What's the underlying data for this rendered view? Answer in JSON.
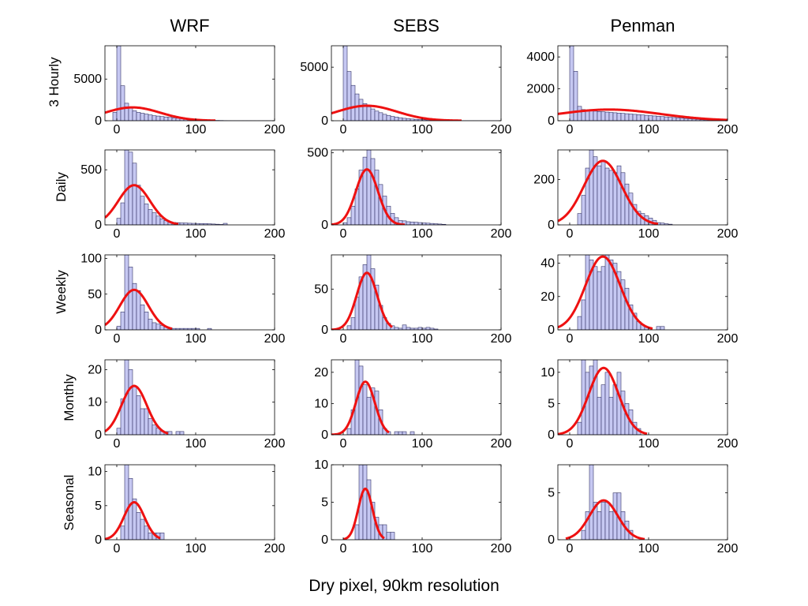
{
  "figure": {
    "columns": [
      "WRF",
      "SEBS",
      "Penman"
    ],
    "rows": [
      "3 Hourly",
      "Daily",
      "Weekly",
      "Monthly",
      "Seasonal"
    ],
    "xlabel": "Dry pixel, 90km resolution"
  },
  "chart_data": {
    "type": "bar",
    "title": "",
    "xlabel": "Dry pixel, 90km resolution",
    "grid": false,
    "xlim": [
      -15,
      200
    ],
    "xticks": [
      0,
      100,
      200
    ],
    "bin_width": 5,
    "colors": {
      "bar_fill": "#c6c8f2",
      "bar_edge": "#333366",
      "fit_line": "#ee1111",
      "axes": "#000000"
    },
    "panels": [
      {
        "column": "WRF",
        "row": "3 Hourly",
        "ylim": [
          0,
          9000
        ],
        "yticks": [
          0,
          5000
        ],
        "bins": [
          -5,
          0,
          5,
          10,
          15,
          20,
          25,
          30,
          35,
          40,
          45,
          50,
          55,
          60,
          65,
          70,
          75,
          80,
          85,
          90,
          95,
          100,
          105,
          110,
          115,
          120,
          125,
          130,
          135,
          140,
          145,
          150,
          155,
          160,
          165,
          170,
          175,
          180,
          185,
          190,
          195
        ],
        "counts": [
          1000,
          9000,
          4200,
          2100,
          1500,
          1200,
          1000,
          900,
          800,
          700,
          600,
          560,
          500,
          450,
          400,
          350,
          300,
          270,
          240,
          200,
          170,
          140,
          110,
          90,
          70,
          50,
          40,
          30,
          20,
          15,
          10,
          8,
          6,
          5,
          4,
          3,
          2,
          2,
          1,
          1,
          1
        ],
        "fit": {
          "mu": 20,
          "sigma": 35,
          "peak": 1600,
          "from": -15,
          "to": 125
        }
      },
      {
        "column": "SEBS",
        "row": "3 Hourly",
        "ylim": [
          0,
          7000
        ],
        "yticks": [
          0,
          5000
        ],
        "bins": [
          0,
          5,
          10,
          15,
          20,
          25,
          30,
          35,
          40,
          45,
          50,
          55,
          60,
          65,
          70,
          75,
          80,
          85,
          90,
          95,
          100,
          105,
          110,
          115,
          120,
          125,
          130,
          135,
          140,
          145,
          150,
          155,
          160,
          165,
          170,
          175,
          180,
          185,
          190,
          195
        ],
        "counts": [
          7000,
          4600,
          3300,
          2500,
          2000,
          1600,
          1300,
          1100,
          900,
          750,
          600,
          500,
          400,
          340,
          280,
          230,
          190,
          160,
          130,
          110,
          90,
          75,
          60,
          50,
          40,
          30,
          25,
          20,
          15,
          10,
          8,
          6,
          5,
          4,
          3,
          2,
          2,
          1,
          1,
          1
        ],
        "fit": {
          "mu": 30,
          "sigma": 38,
          "peak": 1400,
          "from": -15,
          "to": 150
        }
      },
      {
        "column": "Penman",
        "row": "3 Hourly",
        "ylim": [
          0,
          4700
        ],
        "yticks": [
          0,
          2000,
          4000
        ],
        "bins": [
          0,
          5,
          10,
          15,
          20,
          25,
          30,
          35,
          40,
          45,
          50,
          55,
          60,
          65,
          70,
          75,
          80,
          85,
          90,
          95,
          100,
          105,
          110,
          115,
          120,
          125,
          130,
          135,
          140,
          145,
          150,
          155,
          160,
          165,
          170,
          175,
          180,
          185,
          190,
          195
        ],
        "counts": [
          4700,
          3100,
          900,
          700,
          650,
          620,
          600,
          580,
          560,
          540,
          520,
          500,
          480,
          460,
          440,
          420,
          400,
          380,
          360,
          340,
          320,
          300,
          280,
          260,
          240,
          220,
          200,
          180,
          160,
          140,
          120,
          100,
          80,
          60,
          50,
          40,
          30,
          20,
          10,
          5
        ],
        "fit": {
          "mu": 50,
          "sigma": 65,
          "peak": 700,
          "from": -15,
          "to": 200
        }
      },
      {
        "column": "WRF",
        "row": "Daily",
        "ylim": [
          0,
          680
        ],
        "yticks": [
          0,
          500
        ],
        "bins": [
          0,
          5,
          10,
          15,
          20,
          25,
          30,
          35,
          40,
          45,
          50,
          55,
          60,
          65,
          70,
          75,
          80,
          85,
          90,
          95,
          100,
          105,
          110,
          115,
          120,
          125,
          130,
          135
        ],
        "counts": [
          60,
          200,
          680,
          660,
          560,
          360,
          260,
          190,
          140,
          110,
          80,
          55,
          40,
          30,
          22,
          20,
          18,
          17,
          15,
          14,
          13,
          12,
          12,
          10,
          8,
          6,
          4,
          14
        ],
        "fit": {
          "mu": 22,
          "sigma": 20,
          "peak": 360,
          "from": -15,
          "to": 78
        }
      },
      {
        "column": "SEBS",
        "row": "Daily",
        "ylim": [
          0,
          520
        ],
        "yticks": [
          0,
          500
        ],
        "bins": [
          0,
          5,
          10,
          15,
          20,
          25,
          30,
          35,
          40,
          45,
          50,
          55,
          60,
          65,
          70,
          75,
          80,
          85,
          90,
          95,
          100,
          105,
          110,
          115,
          120,
          125
        ],
        "counts": [
          15,
          50,
          130,
          250,
          380,
          470,
          520,
          460,
          380,
          280,
          200,
          130,
          80,
          50,
          30,
          28,
          22,
          20,
          18,
          16,
          14,
          12,
          10,
          8,
          6,
          4
        ],
        "fit": {
          "mu": 30,
          "sigma": 14,
          "peak": 385,
          "from": -15,
          "to": 78
        }
      },
      {
        "column": "Penman",
        "row": "Daily",
        "ylim": [
          0,
          330
        ],
        "yticks": [
          0,
          200
        ],
        "bins": [
          10,
          15,
          20,
          25,
          30,
          35,
          40,
          45,
          50,
          55,
          60,
          65,
          70,
          75,
          80,
          85,
          90,
          95,
          100,
          105,
          110,
          115,
          120,
          125
        ],
        "counts": [
          50,
          130,
          250,
          330,
          300,
          260,
          280,
          250,
          240,
          230,
          260,
          230,
          180,
          140,
          90,
          60,
          50,
          40,
          30,
          20,
          10,
          8,
          5,
          3
        ],
        "fit": {
          "mu": 42,
          "sigma": 24,
          "peak": 282,
          "from": -15,
          "to": 112
        }
      },
      {
        "column": "WRF",
        "row": "Weekly",
        "ylim": [
          0,
          105
        ],
        "yticks": [
          0,
          50,
          100
        ],
        "bins": [
          0,
          5,
          10,
          15,
          20,
          25,
          30,
          35,
          40,
          45,
          50,
          55,
          60,
          65,
          70,
          75,
          80,
          85,
          90,
          95,
          100,
          105,
          110,
          115
        ],
        "counts": [
          5,
          25,
          105,
          88,
          65,
          55,
          35,
          25,
          15,
          10,
          8,
          6,
          4,
          3,
          2,
          2,
          2,
          2,
          2,
          2,
          2,
          0,
          0,
          2
        ],
        "fit": {
          "mu": 22,
          "sigma": 18,
          "peak": 56,
          "from": -15,
          "to": 70
        }
      },
      {
        "column": "SEBS",
        "row": "Weekly",
        "ylim": [
          0,
          92
        ],
        "yticks": [
          0,
          50
        ],
        "bins": [
          5,
          10,
          15,
          20,
          25,
          30,
          35,
          40,
          45,
          50,
          55,
          60,
          65,
          70,
          75,
          80,
          85,
          90,
          95,
          100,
          105,
          110,
          115
        ],
        "counts": [
          5,
          15,
          40,
          65,
          80,
          92,
          75,
          55,
          30,
          15,
          8,
          5,
          3,
          2,
          6,
          3,
          2,
          2,
          3,
          2,
          3,
          2,
          1
        ],
        "fit": {
          "mu": 30,
          "sigma": 13,
          "peak": 70,
          "from": -15,
          "to": 62
        }
      },
      {
        "column": "Penman",
        "row": "Weekly",
        "ylim": [
          0,
          45
        ],
        "yticks": [
          0,
          20,
          40
        ],
        "bins": [
          10,
          15,
          20,
          25,
          30,
          35,
          40,
          45,
          50,
          55,
          60,
          65,
          70,
          75,
          80,
          85,
          90,
          95,
          100,
          105,
          110,
          115
        ],
        "counts": [
          8,
          18,
          45,
          42,
          38,
          35,
          38,
          45,
          42,
          40,
          35,
          30,
          25,
          15,
          10,
          5,
          3,
          2,
          0,
          0,
          2,
          2
        ],
        "fit": {
          "mu": 42,
          "sigma": 22,
          "peak": 44,
          "from": -15,
          "to": 105
        }
      },
      {
        "column": "WRF",
        "row": "Monthly",
        "ylim": [
          0,
          23
        ],
        "yticks": [
          0,
          10,
          20
        ],
        "bins": [
          0,
          5,
          10,
          15,
          20,
          25,
          30,
          35,
          40,
          45,
          50,
          55,
          60,
          65,
          70,
          75,
          80
        ],
        "counts": [
          2,
          11,
          23,
          20,
          15,
          12,
          8,
          8,
          5,
          3,
          2,
          1,
          1,
          1,
          0,
          1,
          1
        ],
        "fit": {
          "mu": 22,
          "sigma": 16,
          "peak": 15,
          "from": -15,
          "to": 65
        }
      },
      {
        "column": "SEBS",
        "row": "Monthly",
        "ylim": [
          0,
          24
        ],
        "yticks": [
          0,
          10,
          20
        ],
        "bins": [
          5,
          10,
          15,
          20,
          25,
          30,
          35,
          40,
          45,
          50,
          55,
          60,
          65,
          70,
          75,
          80,
          85
        ],
        "counts": [
          2,
          8,
          24,
          22,
          16,
          12,
          15,
          14,
          8,
          2,
          1,
          0,
          1,
          1,
          1,
          0,
          1
        ],
        "fit": {
          "mu": 28,
          "sigma": 12,
          "peak": 17,
          "from": -15,
          "to": 58
        }
      },
      {
        "column": "Penman",
        "row": "Monthly",
        "ylim": [
          0,
          12
        ],
        "yticks": [
          0,
          5,
          10
        ],
        "bins": [
          10,
          15,
          20,
          25,
          30,
          35,
          40,
          45,
          50,
          55,
          60,
          65,
          70,
          75,
          80,
          85,
          90,
          95
        ],
        "counts": [
          2,
          12,
          10,
          11,
          12,
          6,
          8,
          10,
          6,
          8,
          10,
          7,
          5,
          4,
          2,
          1,
          0,
          0
        ],
        "fit": {
          "mu": 43,
          "sigma": 19,
          "peak": 10.7,
          "from": -15,
          "to": 98
        }
      },
      {
        "column": "WRF",
        "row": "Seasonal",
        "ylim": [
          0,
          11
        ],
        "yticks": [
          0,
          5,
          10
        ],
        "bins": [
          5,
          10,
          15,
          20,
          25,
          30,
          35,
          40,
          45,
          50,
          55
        ],
        "counts": [
          2,
          11,
          9,
          6,
          4,
          3,
          2,
          1,
          1,
          1,
          1
        ],
        "fit": {
          "mu": 22,
          "sigma": 13,
          "peak": 5.5,
          "from": -15,
          "to": 55
        }
      },
      {
        "column": "SEBS",
        "row": "Seasonal",
        "ylim": [
          0,
          10
        ],
        "yticks": [
          0,
          5,
          10
        ],
        "bins": [
          15,
          20,
          25,
          30,
          35,
          40,
          45,
          50,
          55,
          60
        ],
        "counts": [
          2,
          10,
          10,
          8,
          5,
          3,
          2,
          2,
          1,
          1
        ],
        "fit": {
          "mu": 28,
          "sigma": 9,
          "peak": 6.8,
          "from": 0,
          "to": 52
        }
      },
      {
        "column": "Penman",
        "row": "Seasonal",
        "ylim": [
          0,
          8
        ],
        "yticks": [
          0,
          5
        ],
        "bins": [
          15,
          20,
          25,
          30,
          35,
          40,
          45,
          50,
          55,
          60,
          65,
          70,
          75
        ],
        "counts": [
          1,
          3,
          8,
          4,
          3,
          4,
          4,
          3,
          5,
          5,
          3,
          2,
          1
        ],
        "fit": {
          "mu": 43,
          "sigma": 18,
          "peak": 4.2,
          "from": -5,
          "to": 95
        }
      }
    ]
  }
}
